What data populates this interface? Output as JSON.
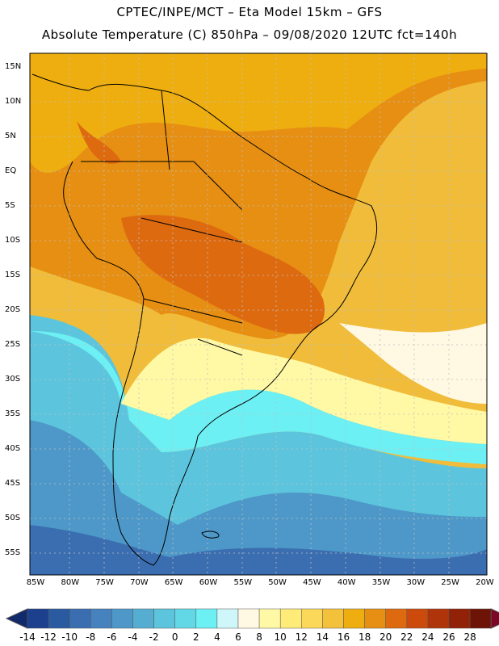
{
  "header": {
    "line1": "CPTEC/INPE/MCT –  Eta Model 15km – GFS",
    "line2": "Absolute Temperature (C) 850hPa – 09/08/2020 12UTC fct=140h"
  },
  "axes": {
    "lat_labels": [
      "15N",
      "10N",
      "5N",
      "EQ",
      "5S",
      "10S",
      "15S",
      "20S",
      "25S",
      "30S",
      "35S",
      "40S",
      "45S",
      "50S",
      "55S"
    ],
    "lon_labels": [
      "85W",
      "80W",
      "75W",
      "70W",
      "65W",
      "60W",
      "55W",
      "50W",
      "45W",
      "40W",
      "35W",
      "30W",
      "25W",
      "20W"
    ]
  },
  "colorbar": {
    "labels": [
      "-14",
      "-12",
      "-10",
      "-8",
      "-6",
      "-4",
      "-2",
      "0",
      "2",
      "4",
      "6",
      "8",
      "10",
      "12",
      "14",
      "16",
      "18",
      "20",
      "22",
      "24",
      "26",
      "28"
    ],
    "colors": [
      "#1c3f8e",
      "#2a5aa0",
      "#3a6eb0",
      "#4682be",
      "#4d98c8",
      "#55aed2",
      "#5cc5dd",
      "#62d8e6",
      "#6cf0f4",
      "#cff6f9",
      "#fff8e2",
      "#fff9a6",
      "#ffeb78",
      "#fbd85a",
      "#f4c23a",
      "#eeae10",
      "#e68f12",
      "#de6a10",
      "#cc4b0c",
      "#b0340a",
      "#912208",
      "#6e1406"
    ],
    "under_color": "#102a6c",
    "over_color": "#7b0825"
  }
}
